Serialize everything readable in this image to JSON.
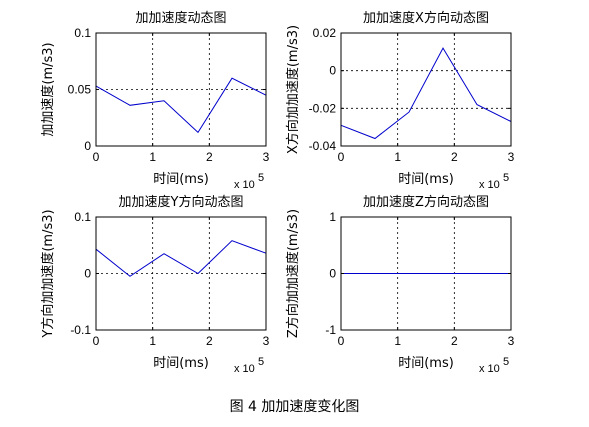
{
  "figure_caption": "图 4  加加速度变化图",
  "chart_data": [
    {
      "type": "line",
      "title": "加加速度动态图",
      "xlabel": "时间(ms)",
      "ylabel": "加加速度(m/s3)",
      "x_multiplier": "x 10",
      "x_multiplier_exp": "5",
      "xlim": [
        0,
        3
      ],
      "ylim": [
        0,
        0.1
      ],
      "xticks": [
        "0",
        "1",
        "2",
        "3"
      ],
      "yticks": [
        {
          "v": 0,
          "t": "0"
        },
        {
          "v": 0.05,
          "t": "0.05"
        },
        {
          "v": 0.1,
          "t": "0.1"
        }
      ],
      "grid": true,
      "color": "#0000cc",
      "x": [
        0,
        0.6,
        1.2,
        1.8,
        2.4,
        3.0
      ],
      "y": [
        0.053,
        0.036,
        0.04,
        0.012,
        0.06,
        0.045
      ]
    },
    {
      "type": "line",
      "title": "加加速度X方向动态图",
      "xlabel": "时间(ms)",
      "ylabel": "X方向加加速度(m/s3)",
      "x_multiplier": "x 10",
      "x_multiplier_exp": "5",
      "xlim": [
        0,
        3
      ],
      "ylim": [
        -0.04,
        0.02
      ],
      "xticks": [
        "0",
        "1",
        "2",
        "3"
      ],
      "yticks": [
        {
          "v": -0.04,
          "t": "-0.04"
        },
        {
          "v": -0.02,
          "t": "-0.02"
        },
        {
          "v": 0,
          "t": "0"
        },
        {
          "v": 0.02,
          "t": "0.02"
        }
      ],
      "grid": true,
      "color": "#0000cc",
      "x": [
        0,
        0.6,
        1.2,
        1.8,
        2.4,
        3.0
      ],
      "y": [
        -0.029,
        -0.036,
        -0.022,
        0.012,
        -0.018,
        -0.027
      ]
    },
    {
      "type": "line",
      "title": "加加速度Y方向动态图",
      "xlabel": "时间(ms)",
      "ylabel": "Y方向加加速度(m/s3)",
      "x_multiplier": "x 10",
      "x_multiplier_exp": "5",
      "xlim": [
        0,
        3
      ],
      "ylim": [
        -0.1,
        0.1
      ],
      "xticks": [
        "0",
        "1",
        "2",
        "3"
      ],
      "yticks": [
        {
          "v": -0.1,
          "t": "-0.1"
        },
        {
          "v": 0,
          "t": "0"
        },
        {
          "v": 0.1,
          "t": "0.1"
        }
      ],
      "grid": true,
      "color": "#0000cc",
      "x": [
        0,
        0.6,
        1.2,
        1.8,
        2.4,
        3.0
      ],
      "y": [
        0.043,
        -0.005,
        0.035,
        0.0,
        0.058,
        0.036
      ]
    },
    {
      "type": "line",
      "title": "加加速度Z方向动态图",
      "xlabel": "时间(ms)",
      "ylabel": "Z方向加加速度(m/s3)",
      "x_multiplier": "x 10",
      "x_multiplier_exp": "5",
      "xlim": [
        0,
        3
      ],
      "ylim": [
        -1,
        1
      ],
      "xticks": [
        "0",
        "1",
        "2",
        "3"
      ],
      "yticks": [
        {
          "v": -1,
          "t": "-1"
        },
        {
          "v": 0,
          "t": "0"
        },
        {
          "v": 1,
          "t": "1"
        }
      ],
      "grid": true,
      "color": "#0000cc",
      "x": [
        0,
        0.6,
        1.2,
        1.8,
        2.4,
        3.0
      ],
      "y": [
        0,
        0,
        0,
        0,
        0,
        0
      ]
    }
  ]
}
